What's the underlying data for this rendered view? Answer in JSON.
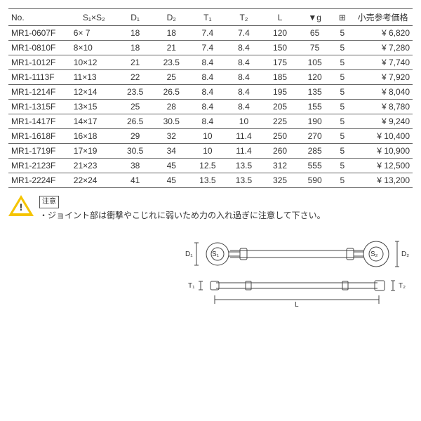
{
  "table": {
    "headers": {
      "no": "No.",
      "s": "S₁×S₂",
      "d1": "D₁",
      "d2": "D₂",
      "t1": "T₁",
      "t2": "T₂",
      "l": "L",
      "g": "▼g",
      "pk": "⊞",
      "price": "小売参考価格"
    },
    "rows": [
      {
        "no": "MR1-0607F",
        "s": "6× 7",
        "d1": "18",
        "d2": "18",
        "t1": "7.4",
        "t2": "7.4",
        "l": "120",
        "g": "65",
        "pk": "5",
        "price": "¥  6,820"
      },
      {
        "no": "MR1-0810F",
        "s": "8×10",
        "d1": "18",
        "d2": "21",
        "t1": "7.4",
        "t2": "8.4",
        "l": "150",
        "g": "75",
        "pk": "5",
        "price": "¥  7,280"
      },
      {
        "no": "MR1-1012F",
        "s": "10×12",
        "d1": "21",
        "d2": "23.5",
        "t1": "8.4",
        "t2": "8.4",
        "l": "175",
        "g": "105",
        "pk": "5",
        "price": "¥  7,740"
      },
      {
        "no": "MR1-1113F",
        "s": "11×13",
        "d1": "22",
        "d2": "25",
        "t1": "8.4",
        "t2": "8.4",
        "l": "185",
        "g": "120",
        "pk": "5",
        "price": "¥  7,920"
      },
      {
        "no": "MR1-1214F",
        "s": "12×14",
        "d1": "23.5",
        "d2": "26.5",
        "t1": "8.4",
        "t2": "8.4",
        "l": "195",
        "g": "135",
        "pk": "5",
        "price": "¥  8,040"
      },
      {
        "no": "MR1-1315F",
        "s": "13×15",
        "d1": "25",
        "d2": "28",
        "t1": "8.4",
        "t2": "8.4",
        "l": "205",
        "g": "155",
        "pk": "5",
        "price": "¥  8,780"
      },
      {
        "no": "MR1-1417F",
        "s": "14×17",
        "d1": "26.5",
        "d2": "30.5",
        "t1": "8.4",
        "t2": "10",
        "l": "225",
        "g": "190",
        "pk": "5",
        "price": "¥  9,240"
      },
      {
        "no": "MR1-1618F",
        "s": "16×18",
        "d1": "29",
        "d2": "32",
        "t1": "10",
        "t2": "11.4",
        "l": "250",
        "g": "270",
        "pk": "5",
        "price": "¥ 10,400"
      },
      {
        "no": "MR1-1719F",
        "s": "17×19",
        "d1": "30.5",
        "d2": "34",
        "t1": "10",
        "t2": "11.4",
        "l": "260",
        "g": "285",
        "pk": "5",
        "price": "¥ 10,900"
      },
      {
        "no": "MR1-2123F",
        "s": "21×23",
        "d1": "38",
        "d2": "45",
        "t1": "12.5",
        "t2": "13.5",
        "l": "312",
        "g": "555",
        "pk": "5",
        "price": "¥ 12,500"
      },
      {
        "no": "MR1-2224F",
        "s": "22×24",
        "d1": "41",
        "d2": "45",
        "t1": "13.5",
        "t2": "13.5",
        "l": "325",
        "g": "590",
        "pk": "5",
        "price": "¥ 13,200"
      }
    ]
  },
  "caution": {
    "label": "注意",
    "text": "・ジョイント部は衝撃やこじれに弱いため力の入れ過ぎに注意して下さい。"
  },
  "diagram": {
    "labels": {
      "D1": "D₁",
      "S1": "S₁",
      "S2": "S₂",
      "D2": "D₂",
      "T1": "T₁",
      "T2": "T₂",
      "L": "L"
    }
  }
}
